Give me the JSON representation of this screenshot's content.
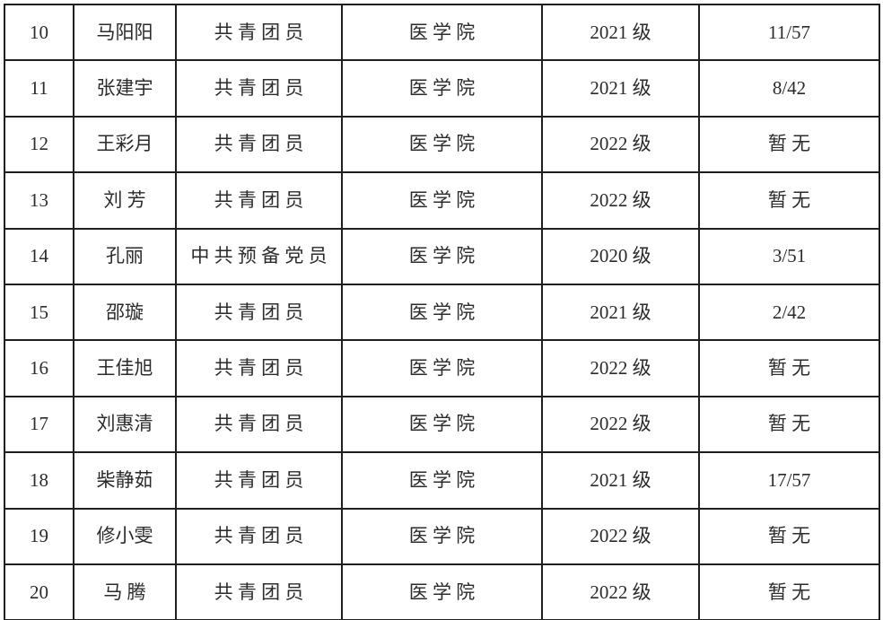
{
  "colors": {
    "background": "#ffffff",
    "border": "#1f1f1f",
    "text": "#2b2b2b"
  },
  "table": {
    "visible_header": false,
    "rows": [
      {
        "index": "10",
        "name": "马阳阳",
        "status": "共 青 团 员",
        "college": "医 学 院",
        "grade": "2021 级",
        "rank": "11/57"
      },
      {
        "index": "11",
        "name": "张建宇",
        "status": "共 青 团 员",
        "college": "医 学 院",
        "grade": "2021 级",
        "rank": "8/42"
      },
      {
        "index": "12",
        "name": "王彩月",
        "status": "共 青 团 员",
        "college": "医 学 院",
        "grade": "2022 级",
        "rank": "暂 无"
      },
      {
        "index": "13",
        "name": "刘 芳",
        "status": "共 青 团 员",
        "college": "医 学 院",
        "grade": "2022 级",
        "rank": "暂 无"
      },
      {
        "index": "14",
        "name": "孔丽",
        "status": "中 共 预 备 党 员",
        "college": "医 学 院",
        "grade": "2020 级",
        "rank": "3/51"
      },
      {
        "index": "15",
        "name": "邵璇",
        "status": "共 青 团 员",
        "college": "医 学 院",
        "grade": "2021 级",
        "rank": "2/42"
      },
      {
        "index": "16",
        "name": "王佳旭",
        "status": "共 青 团 员",
        "college": "医 学 院",
        "grade": "2022 级",
        "rank": "暂 无"
      },
      {
        "index": "17",
        "name": "刘惠清",
        "status": "共 青 团 员",
        "college": "医 学 院",
        "grade": "2022 级",
        "rank": "暂 无"
      },
      {
        "index": "18",
        "name": "柴静茹",
        "status": "共 青 团 员",
        "college": "医 学 院",
        "grade": "2021 级",
        "rank": "17/57"
      },
      {
        "index": "19",
        "name": "修小雯",
        "status": "共 青 团 员",
        "college": "医 学 院",
        "grade": "2022 级",
        "rank": "暂 无"
      },
      {
        "index": "20",
        "name": "马 腾",
        "status": "共 青 团 员",
        "college": "医 学 院",
        "grade": "2022 级",
        "rank": "暂 无"
      }
    ]
  }
}
